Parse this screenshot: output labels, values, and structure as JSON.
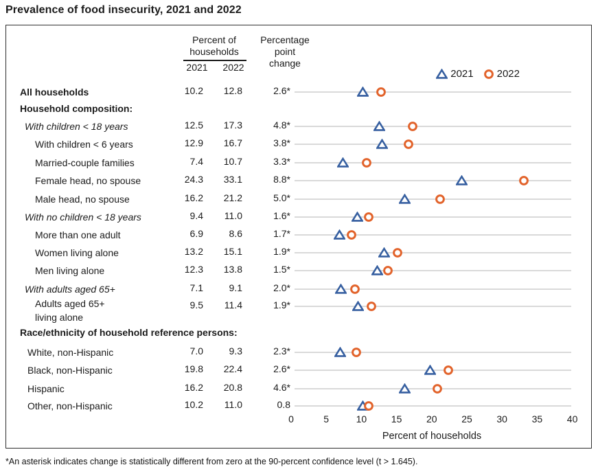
{
  "title": "Prevalence of food insecurity, 2021 and 2022",
  "table": {
    "col_group_header": {
      "line1": "Percent of",
      "line2": "households"
    },
    "year_columns": {
      "y2021": "2021",
      "y2022": "2022"
    },
    "change_header": {
      "line1": "Percentage",
      "line2": "point",
      "line3": "change"
    }
  },
  "legend": {
    "items": [
      {
        "label": "2021",
        "marker": "triangle-icon",
        "color": "#365fa0"
      },
      {
        "label": "2022",
        "marker": "circle-icon",
        "color": "#e2632b"
      }
    ]
  },
  "rows": [
    {
      "label": "All households",
      "style": "bold",
      "v2021": "10.2",
      "v2022": "12.8",
      "change": "2.6*"
    },
    {
      "label": "Household composition:",
      "style": "section"
    },
    {
      "label": "With children < 18 years",
      "style": "italic",
      "v2021": "12.5",
      "v2022": "17.3",
      "change": "4.8*"
    },
    {
      "label": "With children < 6 years",
      "style": "sub",
      "v2021": "12.9",
      "v2022": "16.7",
      "change": "3.8*"
    },
    {
      "label": "Married-couple families",
      "style": "sub",
      "v2021": "7.4",
      "v2022": "10.7",
      "change": "3.3*"
    },
    {
      "label": "Female head, no spouse",
      "style": "sub",
      "v2021": "24.3",
      "v2022": "33.1",
      "change": "8.8*"
    },
    {
      "label": "Male head, no spouse",
      "style": "sub",
      "v2021": "16.2",
      "v2022": "21.2",
      "change": "5.0*"
    },
    {
      "label": "With no children < 18 years",
      "style": "italic",
      "v2021": "9.4",
      "v2022": "11.0",
      "change": "1.6*"
    },
    {
      "label": "More than one adult",
      "style": "sub",
      "v2021": "6.9",
      "v2022": "8.6",
      "change": "1.7*"
    },
    {
      "label": "Women living alone",
      "style": "sub",
      "v2021": "13.2",
      "v2022": "15.1",
      "change": "1.9*"
    },
    {
      "label": "Men living alone",
      "style": "sub",
      "v2021": "12.3",
      "v2022": "13.8",
      "change": "1.5*"
    },
    {
      "label": "With adults aged 65+",
      "style": "italic",
      "v2021": "7.1",
      "v2022": "9.1",
      "change": "2.0*"
    },
    {
      "label": "Adults aged 65+",
      "label2": "living alone",
      "style": "sub",
      "v2021": "9.5",
      "v2022": "11.4",
      "change": "1.9*"
    },
    {
      "label": "Race/ethnicity of household reference persons:",
      "style": "section"
    },
    {
      "label": "White, non-Hispanic",
      "style": "race",
      "v2021": "7.0",
      "v2022": "9.3",
      "change": "2.3*"
    },
    {
      "label": "Black, non-Hispanic",
      "style": "race",
      "v2021": "19.8",
      "v2022": "22.4",
      "change": "2.6*"
    },
    {
      "label": "Hispanic",
      "style": "race",
      "v2021": "16.2",
      "v2022": "20.8",
      "change": "4.6*"
    },
    {
      "label": "Other, non-Hispanic",
      "style": "race",
      "v2021": "10.2",
      "v2022": "11.0",
      "change": "0.8"
    }
  ],
  "x_axis": {
    "ticks": [
      "0",
      "5",
      "10",
      "15",
      "20",
      "25",
      "30",
      "35",
      "40"
    ],
    "label": "Percent of households"
  },
  "footnote": "*An asterisk indicates change is statistically different from zero at the 90-percent confidence level (t > 1.645).",
  "colors": {
    "marker_2021_triangle": "#365fa0",
    "marker_2022_circle": "#e2632b",
    "row_line": "#d9d9d9",
    "box_border": "#2e2e2e"
  },
  "chart_data": {
    "type": "scatter",
    "title": "Prevalence of food insecurity, 2021 and 2022",
    "xlabel": "Percent of households",
    "xlim": [
      0,
      40
    ],
    "x_ticks": [
      0,
      5,
      10,
      15,
      20,
      25,
      30,
      35,
      40
    ],
    "grid": "horizontal-row-lines",
    "legend_position": "top-right",
    "categories": [
      "All households",
      "With children < 18 years",
      "With children < 6 years",
      "Married-couple families",
      "Female head, no spouse",
      "Male head, no spouse",
      "With no children < 18 years",
      "More than one adult",
      "Women living alone",
      "Men living alone",
      "With adults aged 65+",
      "Adults aged 65+ living alone",
      "White, non-Hispanic",
      "Black, non-Hispanic",
      "Hispanic",
      "Other, non-Hispanic"
    ],
    "series": [
      {
        "name": "2021",
        "marker": "open-triangle",
        "color": "#365fa0",
        "values": [
          10.2,
          12.5,
          12.9,
          7.4,
          24.3,
          16.2,
          9.4,
          6.9,
          13.2,
          12.3,
          7.1,
          9.5,
          7.0,
          19.8,
          16.2,
          10.2
        ]
      },
      {
        "name": "2022",
        "marker": "open-circle",
        "color": "#e2632b",
        "values": [
          12.8,
          17.3,
          16.7,
          10.7,
          33.1,
          21.2,
          11.0,
          8.6,
          15.1,
          13.8,
          9.1,
          11.4,
          9.3,
          22.4,
          20.8,
          11.0
        ]
      }
    ],
    "percentage_point_change": [
      "2.6*",
      "4.8*",
      "3.8*",
      "3.3*",
      "8.8*",
      "5.0*",
      "1.6*",
      "1.7*",
      "1.9*",
      "1.5*",
      "2.0*",
      "1.9*",
      "2.3*",
      "2.6*",
      "4.6*",
      "0.8"
    ]
  }
}
